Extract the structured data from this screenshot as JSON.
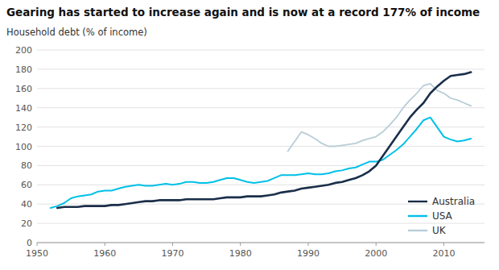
{
  "chart_data": {
    "type": "line",
    "title": "Gearing has started to increase again and is now at a record 177% of income",
    "y_label": "Household debt (% of income)",
    "xlim": [
      1950,
      2016
    ],
    "ylim": [
      0,
      200
    ],
    "xticks": [
      1950,
      1960,
      1970,
      1980,
      1990,
      2000,
      2010
    ],
    "yticks": [
      0,
      20,
      40,
      60,
      80,
      100,
      120,
      140,
      160,
      180,
      200
    ],
    "grid": true,
    "legend": "lower right",
    "series": [
      {
        "name": "Australia",
        "color": "#1a2e4a",
        "x": [
          1953,
          1954,
          1955,
          1956,
          1957,
          1958,
          1959,
          1960,
          1961,
          1962,
          1963,
          1964,
          1965,
          1966,
          1967,
          1968,
          1969,
          1970,
          1971,
          1972,
          1973,
          1974,
          1975,
          1976,
          1977,
          1978,
          1979,
          1980,
          1981,
          1982,
          1983,
          1984,
          1985,
          1986,
          1987,
          1988,
          1989,
          1990,
          1991,
          1992,
          1993,
          1994,
          1995,
          1996,
          1997,
          1998,
          1999,
          2000,
          2001,
          2002,
          2003,
          2004,
          2005,
          2006,
          2007,
          2008,
          2009,
          2010,
          2011,
          2012,
          2013,
          2014
        ],
        "values": [
          36,
          37,
          37,
          37,
          38,
          38,
          38,
          38,
          39,
          39,
          40,
          41,
          42,
          43,
          43,
          44,
          44,
          44,
          44,
          45,
          45,
          45,
          45,
          45,
          46,
          47,
          47,
          47,
          48,
          48,
          48,
          49,
          50,
          52,
          53,
          54,
          56,
          57,
          58,
          59,
          60,
          62,
          63,
          65,
          67,
          70,
          74,
          80,
          90,
          100,
          110,
          120,
          130,
          138,
          145,
          155,
          162,
          168,
          173,
          174,
          175,
          177
        ]
      },
      {
        "name": "USA",
        "color": "#00c0e8",
        "x": [
          1952,
          1953,
          1954,
          1955,
          1956,
          1957,
          1958,
          1959,
          1960,
          1961,
          1962,
          1963,
          1964,
          1965,
          1966,
          1967,
          1968,
          1969,
          1970,
          1971,
          1972,
          1973,
          1974,
          1975,
          1976,
          1977,
          1978,
          1979,
          1980,
          1981,
          1982,
          1983,
          1984,
          1985,
          1986,
          1987,
          1988,
          1989,
          1990,
          1991,
          1992,
          1993,
          1994,
          1995,
          1996,
          1997,
          1998,
          1999,
          2000,
          2001,
          2002,
          2003,
          2004,
          2005,
          2006,
          2007,
          2008,
          2009,
          2010,
          2011,
          2012,
          2013,
          2014
        ],
        "values": [
          36,
          38,
          41,
          46,
          48,
          49,
          50,
          53,
          54,
          54,
          56,
          58,
          59,
          60,
          59,
          59,
          60,
          61,
          60,
          61,
          63,
          63,
          62,
          62,
          63,
          65,
          67,
          67,
          65,
          63,
          62,
          63,
          64,
          67,
          70,
          70,
          70,
          71,
          72,
          71,
          71,
          72,
          74,
          75,
          77,
          78,
          81,
          84,
          84,
          86,
          91,
          96,
          102,
          110,
          118,
          127,
          130,
          120,
          110,
          107,
          105,
          106,
          108
        ]
      },
      {
        "name": "UK",
        "color": "#b8cdd8",
        "x": [
          1987,
          1988,
          1989,
          1990,
          1991,
          1992,
          1993,
          1994,
          1995,
          1996,
          1997,
          1998,
          1999,
          2000,
          2001,
          2002,
          2003,
          2004,
          2005,
          2006,
          2007,
          2008,
          2009,
          2010,
          2011,
          2012,
          2013,
          2014
        ],
        "values": [
          95,
          105,
          115,
          112,
          108,
          103,
          100,
          100,
          101,
          102,
          103,
          106,
          108,
          110,
          115,
          122,
          130,
          140,
          148,
          155,
          163,
          165,
          158,
          155,
          150,
          148,
          145,
          142
        ]
      }
    ]
  }
}
